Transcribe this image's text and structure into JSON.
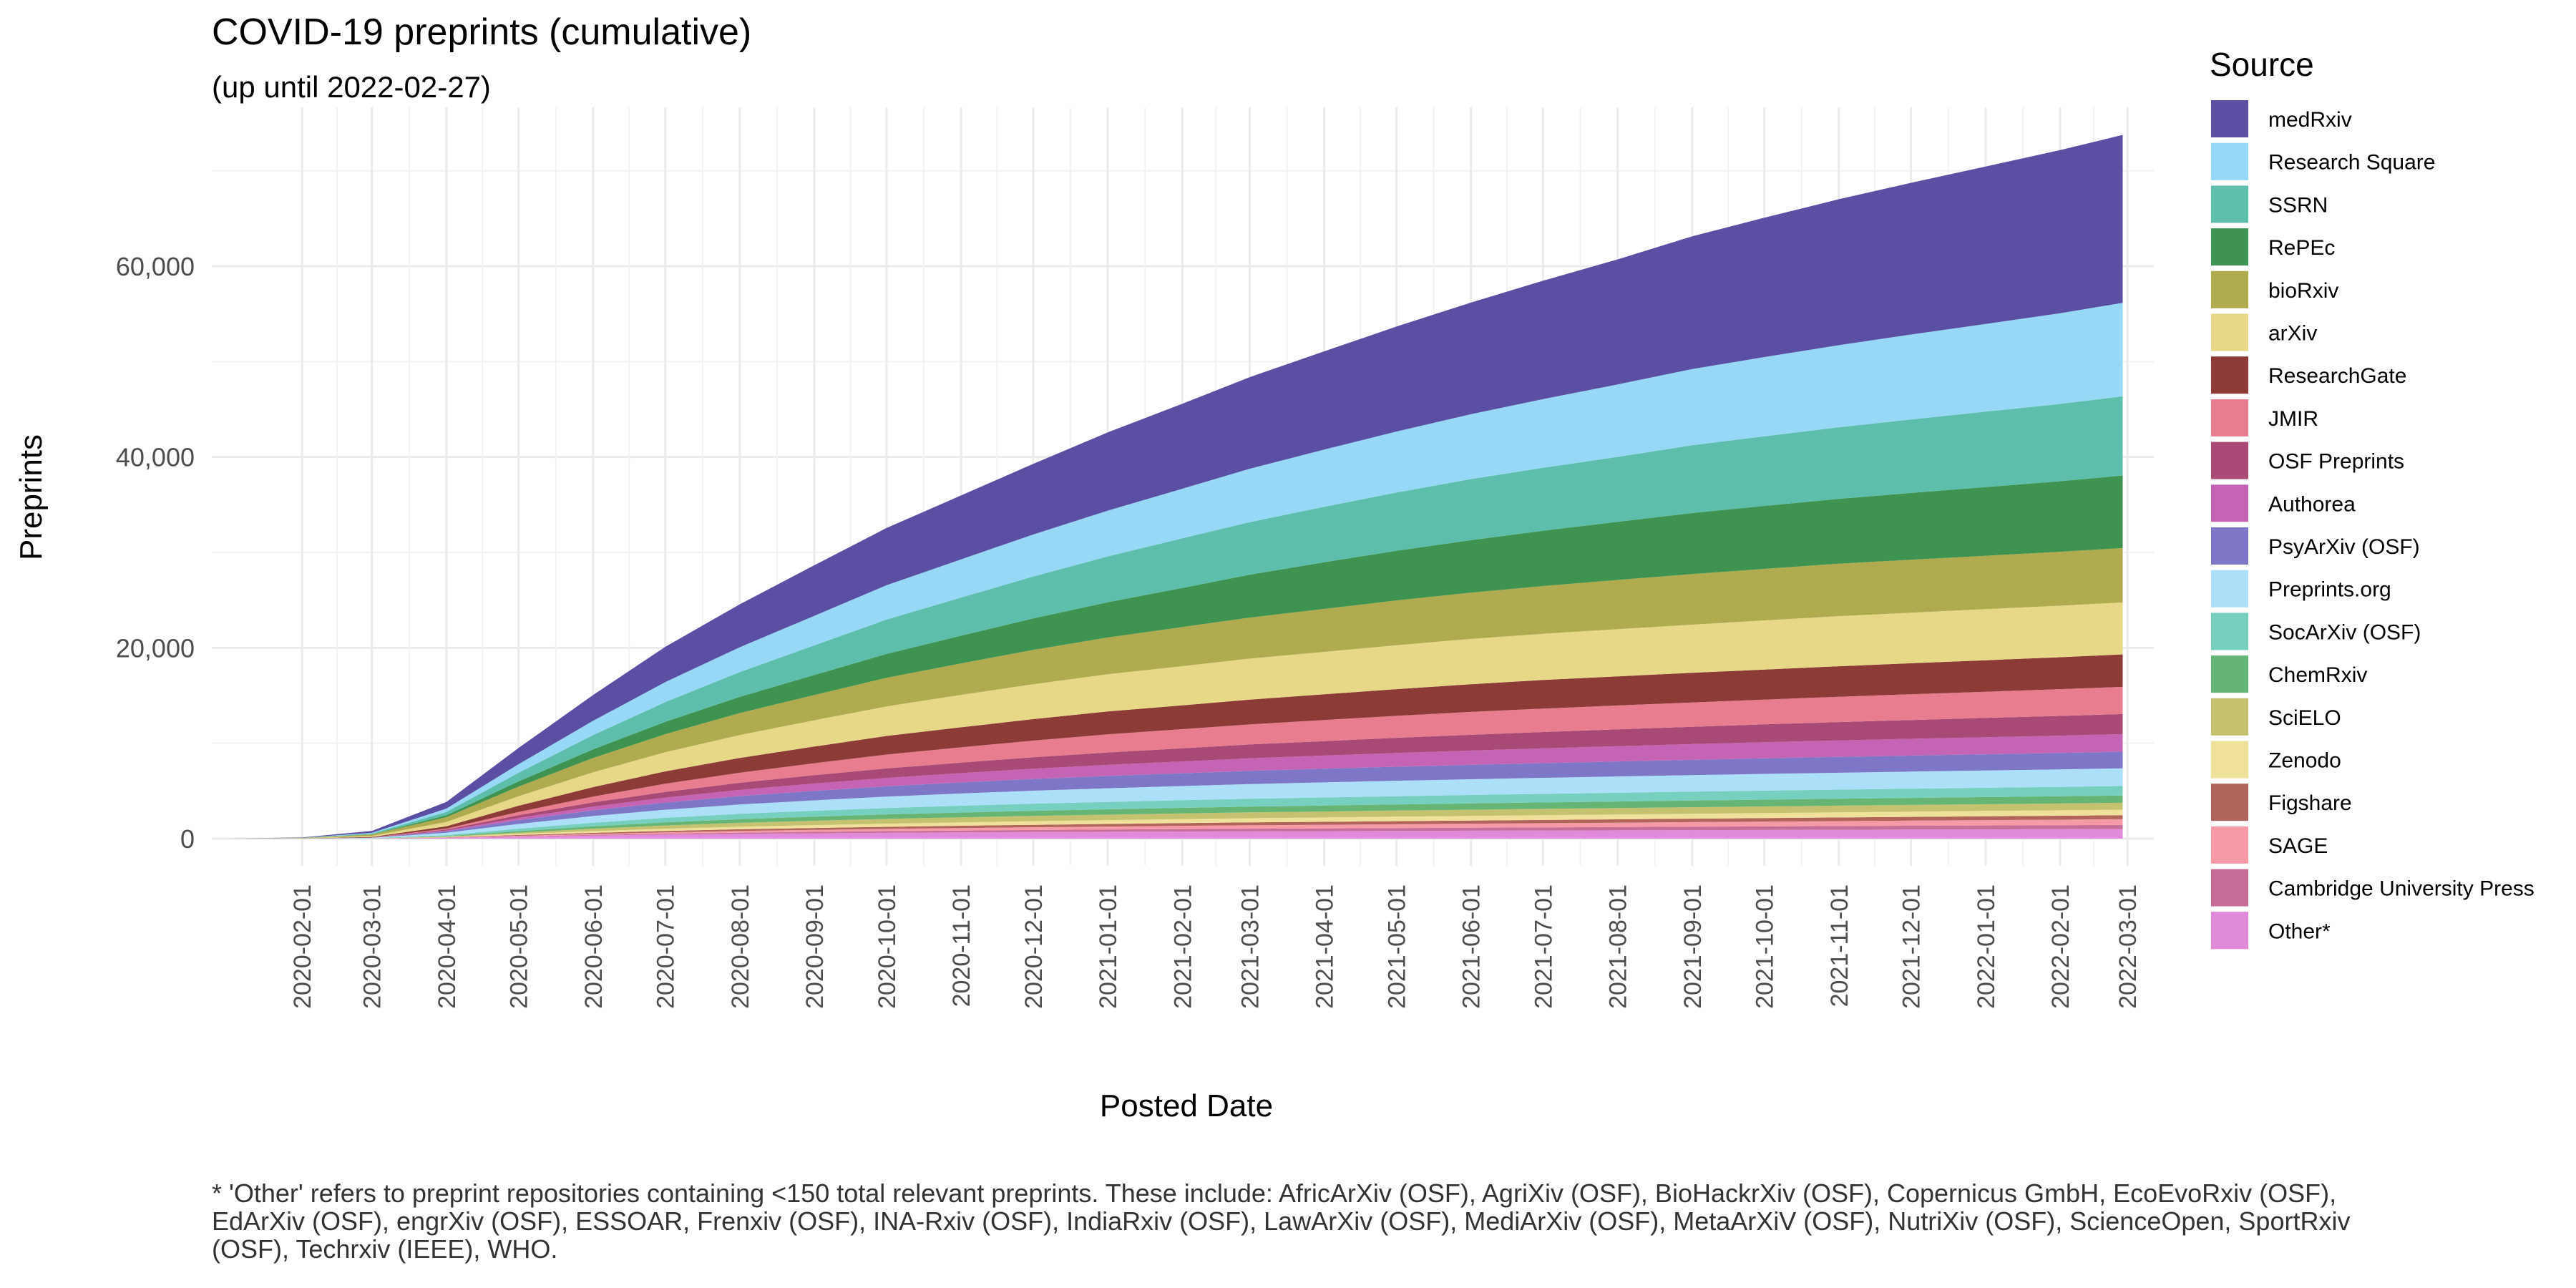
{
  "chart_data": {
    "type": "area",
    "stacked": true,
    "title": "COVID-19 preprints (cumulative)",
    "subtitle": "(up until 2022-02-27)",
    "xlabel": "Posted Date",
    "ylabel": "Preprints",
    "xlim": [
      "2020-01-01",
      "2022-02-27"
    ],
    "ylim": [
      0,
      75000
    ],
    "grid": true,
    "legend_title": "Source",
    "legend_placement": "right",
    "x_ticks": [
      "2020-02-01",
      "2020-03-01",
      "2020-04-01",
      "2020-05-01",
      "2020-06-01",
      "2020-07-01",
      "2020-08-01",
      "2020-09-01",
      "2020-10-01",
      "2020-11-01",
      "2020-12-01",
      "2021-01-01",
      "2021-02-01",
      "2021-03-01",
      "2021-04-01",
      "2021-05-01",
      "2021-06-01",
      "2021-07-01",
      "2021-08-01",
      "2021-09-01",
      "2021-10-01",
      "2021-11-01",
      "2021-12-01",
      "2022-01-01",
      "2022-02-01",
      "2022-03-01"
    ],
    "y_ticks": [
      0,
      20000,
      40000,
      60000
    ],
    "y_tick_labels": [
      "0",
      "20,000",
      "40,000",
      "60,000"
    ],
    "x": [
      "2020-01-01",
      "2020-02-01",
      "2020-03-01",
      "2020-04-01",
      "2020-05-01",
      "2020-06-01",
      "2020-07-01",
      "2020-08-01",
      "2020-09-01",
      "2020-10-01",
      "2020-11-01",
      "2020-12-01",
      "2021-01-01",
      "2021-02-01",
      "2021-03-01",
      "2021-04-01",
      "2021-05-01",
      "2021-06-01",
      "2021-07-01",
      "2021-08-01",
      "2021-09-01",
      "2021-10-01",
      "2021-11-01",
      "2021-12-01",
      "2022-01-01",
      "2022-02-01",
      "2022-02-27"
    ],
    "series": [
      {
        "name": "medRxiv",
        "color": "#5a4fa2",
        "values": [
          0,
          40,
          200,
          700,
          1700,
          2700,
          3700,
          4500,
          5300,
          6000,
          6700,
          7400,
          8200,
          8900,
          9600,
          10300,
          11000,
          11700,
          12400,
          13100,
          13900,
          14600,
          15300,
          15900,
          16500,
          17100,
          17600
        ]
      },
      {
        "name": "Research Square",
        "color": "#97d8f7",
        "values": [
          0,
          10,
          80,
          350,
          900,
          1500,
          2100,
          2600,
          3100,
          3600,
          4000,
          4400,
          4800,
          5200,
          5600,
          6000,
          6400,
          6800,
          7200,
          7600,
          8000,
          8300,
          8600,
          8900,
          9200,
          9500,
          9800
        ]
      },
      {
        "name": "SSRN",
        "color": "#5dbfab",
        "values": [
          0,
          10,
          80,
          350,
          900,
          1500,
          2050,
          2600,
          3100,
          3600,
          4000,
          4400,
          4800,
          5200,
          5500,
          5800,
          6100,
          6400,
          6600,
          6800,
          7100,
          7300,
          7500,
          7700,
          7900,
          8100,
          8300
        ]
      },
      {
        "name": "RePEc",
        "color": "#3e9351",
        "values": [
          0,
          0,
          20,
          200,
          550,
          900,
          1300,
          1700,
          2100,
          2500,
          2900,
          3300,
          3700,
          4100,
          4500,
          4900,
          5200,
          5500,
          5800,
          6100,
          6400,
          6600,
          6800,
          7000,
          7200,
          7400,
          7600
        ]
      },
      {
        "name": "bioRxiv",
        "color": "#b0ab4e",
        "values": [
          0,
          30,
          150,
          500,
          1000,
          1500,
          1900,
          2300,
          2650,
          3000,
          3300,
          3600,
          3850,
          4100,
          4300,
          4500,
          4700,
          4850,
          5000,
          5150,
          5300,
          5400,
          5500,
          5550,
          5600,
          5650,
          5700
        ]
      },
      {
        "name": "arXiv",
        "color": "#e6d887",
        "values": [
          0,
          20,
          100,
          450,
          1000,
          1550,
          2000,
          2400,
          2750,
          3100,
          3400,
          3650,
          3900,
          4100,
          4300,
          4450,
          4600,
          4750,
          4850,
          4950,
          5050,
          5150,
          5250,
          5300,
          5350,
          5400,
          5450
        ]
      },
      {
        "name": "ResearchGate",
        "color": "#8c3b36",
        "values": [
          0,
          10,
          60,
          250,
          650,
          1000,
          1300,
          1550,
          1750,
          1950,
          2100,
          2250,
          2400,
          2500,
          2600,
          2700,
          2800,
          2900,
          3000,
          3050,
          3100,
          3150,
          3200,
          3250,
          3300,
          3350,
          3400
        ]
      },
      {
        "name": "JMIR",
        "color": "#e87d8f",
        "values": [
          0,
          0,
          10,
          100,
          350,
          600,
          850,
          1050,
          1250,
          1450,
          1600,
          1750,
          1900,
          2000,
          2100,
          2200,
          2300,
          2400,
          2450,
          2500,
          2550,
          2600,
          2650,
          2700,
          2750,
          2800,
          2850
        ]
      },
      {
        "name": "OSF Preprints",
        "color": "#a84a75",
        "values": [
          0,
          0,
          10,
          100,
          280,
          450,
          600,
          750,
          880,
          1000,
          1100,
          1200,
          1300,
          1380,
          1450,
          1520,
          1590,
          1650,
          1710,
          1770,
          1820,
          1870,
          1920,
          1970,
          2020,
          2070,
          2100
        ]
      },
      {
        "name": "Authorea",
        "color": "#c563b5",
        "values": [
          0,
          0,
          10,
          80,
          230,
          380,
          520,
          650,
          770,
          880,
          980,
          1070,
          1160,
          1240,
          1310,
          1380,
          1440,
          1500,
          1550,
          1600,
          1650,
          1690,
          1730,
          1760,
          1790,
          1820,
          1850
        ]
      },
      {
        "name": "PsyArXiv (OSF)",
        "color": "#7e77c7",
        "values": [
          0,
          0,
          10,
          150,
          400,
          600,
          750,
          880,
          990,
          1080,
          1160,
          1230,
          1290,
          1340,
          1390,
          1430,
          1470,
          1510,
          1540,
          1570,
          1600,
          1630,
          1660,
          1680,
          1700,
          1720,
          1740
        ]
      },
      {
        "name": "Preprints.org",
        "color": "#ace0f9",
        "values": [
          0,
          10,
          50,
          250,
          500,
          700,
          850,
          980,
          1090,
          1190,
          1280,
          1360,
          1430,
          1490,
          1540,
          1580,
          1620,
          1650,
          1680,
          1710,
          1730,
          1750,
          1770,
          1790,
          1810,
          1830,
          1850
        ]
      },
      {
        "name": "SocArXiv (OSF)",
        "color": "#76cfbf",
        "values": [
          0,
          0,
          5,
          100,
          250,
          380,
          480,
          560,
          620,
          670,
          710,
          745,
          775,
          800,
          825,
          845,
          865,
          885,
          900,
          915,
          930,
          945,
          955,
          965,
          975,
          985,
          995
        ]
      },
      {
        "name": "ChemRxiv",
        "color": "#66b574",
        "values": [
          0,
          0,
          5,
          60,
          160,
          250,
          320,
          380,
          430,
          470,
          505,
          535,
          560,
          585,
          605,
          625,
          645,
          660,
          675,
          690,
          705,
          715,
          725,
          735,
          745,
          755,
          765
        ]
      },
      {
        "name": "SciELO",
        "color": "#c4c16f",
        "values": [
          0,
          0,
          0,
          20,
          130,
          250,
          340,
          410,
          460,
          500,
          530,
          555,
          575,
          595,
          610,
          625,
          640,
          650,
          660,
          670,
          680,
          690,
          700,
          705,
          710,
          715,
          720
        ]
      },
      {
        "name": "Zenodo",
        "color": "#f0e19a",
        "values": [
          0,
          0,
          5,
          50,
          120,
          180,
          230,
          270,
          300,
          330,
          355,
          380,
          400,
          420,
          440,
          455,
          470,
          485,
          500,
          510,
          520,
          530,
          540,
          550,
          560,
          570,
          580
        ]
      },
      {
        "name": "Figshare",
        "color": "#b0645a",
        "values": [
          0,
          0,
          5,
          30,
          80,
          120,
          150,
          180,
          200,
          220,
          240,
          255,
          270,
          285,
          300,
          310,
          320,
          330,
          340,
          350,
          360,
          370,
          380,
          390,
          400,
          410,
          420
        ]
      },
      {
        "name": "SAGE",
        "color": "#f79aa8",
        "values": [
          0,
          0,
          0,
          20,
          60,
          100,
          140,
          170,
          200,
          230,
          260,
          285,
          310,
          335,
          360,
          380,
          400,
          420,
          440,
          460,
          480,
          500,
          520,
          540,
          560,
          580,
          600
        ]
      },
      {
        "name": "Cambridge University Press",
        "color": "#c76e98",
        "values": [
          0,
          0,
          0,
          10,
          40,
          70,
          100,
          130,
          155,
          180,
          200,
          220,
          240,
          255,
          270,
          285,
          300,
          315,
          330,
          345,
          360,
          375,
          390,
          400,
          410,
          420,
          430
        ]
      },
      {
        "name": "Other*",
        "color": "#e08ad9",
        "values": [
          0,
          0,
          10,
          80,
          200,
          320,
          420,
          500,
          560,
          610,
          650,
          690,
          720,
          750,
          770,
          790,
          810,
          830,
          850,
          870,
          890,
          910,
          930,
          950,
          970,
          990,
          1010
        ]
      }
    ]
  },
  "footnote": "* 'Other' refers to preprint repositories containing <150 total relevant preprints. These include: AfricArXiv (OSF), AgriXiv (OSF), BioHackrXiv (OSF), Copernicus GmbH, EcoEvoRxiv (OSF), EdArXiv (OSF), engrXiv (OSF), ESSOAR, Frenxiv (OSF), INA-Rxiv (OSF), IndiaRxiv (OSF), LawArXiv (OSF), MediArXiv (OSF), MetaArXiV (OSF), NutriXiv (OSF), ScienceOpen, SportRxiv (OSF), Techrxiv (IEEE), WHO."
}
